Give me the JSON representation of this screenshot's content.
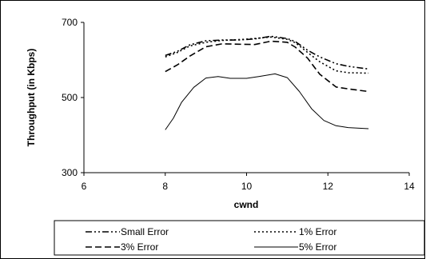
{
  "chart_data": {
    "type": "line",
    "title": "",
    "xlabel": "cwnd",
    "ylabel": "Throughput (in Kbps)",
    "xlim": [
      6,
      14
    ],
    "ylim": [
      300,
      700
    ],
    "x_ticks": [
      "6",
      "8",
      "10",
      "12",
      "14"
    ],
    "y_ticks": [
      "300",
      "500",
      "700"
    ],
    "grid": false,
    "legend_position": "bottom",
    "series": [
      {
        "name": "Small Error",
        "dash": "dash-dot-dot",
        "x": [
          8,
          8.3,
          8.6,
          9,
          9.4,
          9.8,
          10.2,
          10.6,
          11,
          11.2,
          11.5,
          11.8,
          12.2,
          12.5,
          13
        ],
        "y": [
          612,
          623,
          640,
          651,
          653,
          653,
          656,
          663,
          657,
          649,
          626,
          608,
          590,
          583,
          576
        ]
      },
      {
        "name": "1% Error",
        "dash": "dotted",
        "x": [
          8,
          8.3,
          8.6,
          9,
          9.4,
          9.8,
          10.2,
          10.6,
          11,
          11.2,
          11.5,
          11.8,
          12.2,
          12.5,
          13
        ],
        "y": [
          608,
          620,
          637,
          647,
          652,
          654,
          657,
          661,
          655,
          646,
          620,
          595,
          571,
          566,
          565
        ]
      },
      {
        "name": "3% Error",
        "dash": "dashed",
        "x": [
          8,
          8.3,
          8.6,
          9,
          9.4,
          9.8,
          10.2,
          10.6,
          11,
          11.2,
          11.5,
          11.8,
          12.2,
          12.5,
          13
        ],
        "y": [
          569,
          587,
          610,
          635,
          643,
          642,
          641,
          650,
          647,
          634,
          605,
          562,
          528,
          523,
          516
        ]
      },
      {
        "name": "5% Error",
        "dash": "solid",
        "x": [
          8,
          8.2,
          8.4,
          8.7,
          9,
          9.3,
          9.6,
          10,
          10.3,
          10.7,
          11,
          11.3,
          11.6,
          11.9,
          12.2,
          12.5,
          13
        ],
        "y": [
          414,
          445,
          487,
          527,
          552,
          556,
          551,
          551,
          556,
          563,
          553,
          516,
          470,
          439,
          425,
          420,
          417
        ]
      }
    ]
  }
}
